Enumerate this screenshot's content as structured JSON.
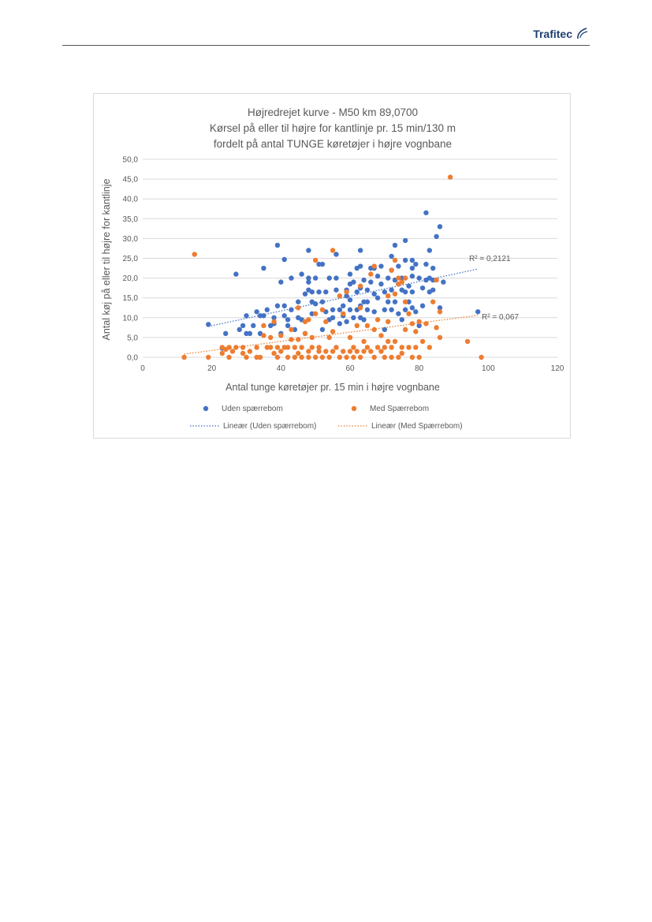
{
  "header": {
    "logo_text": "Trafitec"
  },
  "chart_data": {
    "type": "scatter",
    "title_lines": [
      "Højredrejet kurve - M50 km 89,0700",
      "Kørsel på eller til højre for kantlinje pr. 15 min/130 m",
      "fordelt på antal TUNGE køretøjer i højre vognbane"
    ],
    "xlabel": "Antal tunge køretøjer pr. 15 min i højre vognbane",
    "ylabel": "Antal køj på eller til højre for kantlinje",
    "xlim": [
      0,
      120
    ],
    "ylim": [
      0,
      50
    ],
    "x_ticks": [
      "0",
      "20",
      "40",
      "60",
      "80",
      "100",
      "120"
    ],
    "y_ticks": [
      "0,0",
      "5,0",
      "10,0",
      "15,0",
      "20,0",
      "25,0",
      "30,0",
      "35,0",
      "40,0",
      "45,0",
      "50,0"
    ],
    "grid": "horizontal",
    "legend_position": "bottom",
    "series": [
      {
        "name": "Uden spærrebom",
        "color": "#4472c4",
        "trend_label": "Lineær (Uden spærrebom)",
        "r2_label": "R² = 0,2121",
        "trend": [
          [
            19,
            7.8
          ],
          [
            97,
            22.3
          ]
        ],
        "points": [
          [
            19,
            8.3
          ],
          [
            23,
            2.3
          ],
          [
            24,
            6
          ],
          [
            27,
            21
          ],
          [
            28,
            7
          ],
          [
            29,
            8
          ],
          [
            30,
            10.5
          ],
          [
            30,
            6
          ],
          [
            31,
            6
          ],
          [
            32,
            8
          ],
          [
            33,
            11.5
          ],
          [
            34,
            6
          ],
          [
            34,
            10.5
          ],
          [
            35,
            22.5
          ],
          [
            35,
            10.5
          ],
          [
            36,
            12
          ],
          [
            37,
            8
          ],
          [
            38,
            8.5
          ],
          [
            38,
            10
          ],
          [
            39,
            28.3
          ],
          [
            39,
            13
          ],
          [
            40,
            19
          ],
          [
            40,
            6
          ],
          [
            41,
            24.7
          ],
          [
            41,
            13
          ],
          [
            41,
            10.5
          ],
          [
            42,
            9.5
          ],
          [
            42,
            8
          ],
          [
            43,
            20
          ],
          [
            43,
            12
          ],
          [
            44,
            7
          ],
          [
            45,
            10
          ],
          [
            45,
            14
          ],
          [
            46,
            21
          ],
          [
            46,
            9.5
          ],
          [
            47,
            16
          ],
          [
            47,
            6
          ],
          [
            48,
            27
          ],
          [
            48,
            19
          ],
          [
            48,
            20
          ],
          [
            48,
            17
          ],
          [
            49,
            16.5
          ],
          [
            49,
            14
          ],
          [
            49,
            11
          ],
          [
            50,
            20
          ],
          [
            50,
            13.5
          ],
          [
            51,
            23.5
          ],
          [
            51,
            16.5
          ],
          [
            52,
            23.5
          ],
          [
            52,
            14
          ],
          [
            52,
            7
          ],
          [
            53,
            11.5
          ],
          [
            53,
            16.5
          ],
          [
            54,
            20
          ],
          [
            54,
            9.5
          ],
          [
            55,
            12
          ],
          [
            55,
            10
          ],
          [
            56,
            26
          ],
          [
            56,
            20
          ],
          [
            56,
            17
          ],
          [
            57,
            12
          ],
          [
            57,
            8.5
          ],
          [
            58,
            13
          ],
          [
            58,
            10.5
          ],
          [
            59,
            17
          ],
          [
            59,
            15.5
          ],
          [
            59,
            9
          ],
          [
            60,
            21
          ],
          [
            60,
            18.5
          ],
          [
            60,
            14.5
          ],
          [
            60,
            12
          ],
          [
            61,
            19
          ],
          [
            61,
            10
          ],
          [
            62,
            22.5
          ],
          [
            62,
            16.5
          ],
          [
            62,
            12
          ],
          [
            63,
            27
          ],
          [
            63,
            23
          ],
          [
            63,
            17.5
          ],
          [
            63,
            13
          ],
          [
            63,
            10
          ],
          [
            64,
            19.5
          ],
          [
            64,
            14
          ],
          [
            64,
            9.5
          ],
          [
            65,
            17
          ],
          [
            65,
            14
          ],
          [
            65,
            12
          ],
          [
            66,
            22.5
          ],
          [
            66,
            19
          ],
          [
            67,
            22.5
          ],
          [
            67,
            16
          ],
          [
            67,
            11.5
          ],
          [
            68,
            20.5
          ],
          [
            68,
            15
          ],
          [
            69,
            23
          ],
          [
            69,
            18.5
          ],
          [
            70,
            16.5
          ],
          [
            70,
            12
          ],
          [
            70,
            7
          ],
          [
            71,
            20
          ],
          [
            71,
            14
          ],
          [
            72,
            25.5
          ],
          [
            72,
            22
          ],
          [
            72,
            17
          ],
          [
            72,
            12
          ],
          [
            73,
            28.3
          ],
          [
            73,
            19.5
          ],
          [
            73,
            14
          ],
          [
            74,
            23
          ],
          [
            74,
            18.5
          ],
          [
            74,
            11
          ],
          [
            75,
            20
          ],
          [
            75,
            17
          ],
          [
            75,
            9.5
          ],
          [
            76,
            29.5
          ],
          [
            76,
            24.5
          ],
          [
            76,
            16.5
          ],
          [
            76,
            12
          ],
          [
            77,
            18
          ],
          [
            77,
            14
          ],
          [
            78,
            24.5
          ],
          [
            78,
            22.5
          ],
          [
            78,
            20.5
          ],
          [
            78,
            16.5
          ],
          [
            78,
            12.5
          ],
          [
            79,
            23.5
          ],
          [
            79,
            11.5
          ],
          [
            80,
            20
          ],
          [
            80,
            8
          ],
          [
            81,
            17.5
          ],
          [
            81,
            13
          ],
          [
            82,
            36.5
          ],
          [
            82,
            23.5
          ],
          [
            82,
            19.5
          ],
          [
            83,
            27
          ],
          [
            83,
            20
          ],
          [
            83,
            16.5
          ],
          [
            84,
            22.5
          ],
          [
            84,
            19.5
          ],
          [
            84,
            17
          ],
          [
            85,
            30.5
          ],
          [
            86,
            33
          ],
          [
            86,
            12.5
          ],
          [
            87,
            19
          ],
          [
            97,
            11.5
          ]
        ]
      },
      {
        "name": "Med Spærrebom",
        "color": "#ed7d31",
        "trend_label": "Lineær (Med Spærrebom)",
        "r2_label": "R² = 0,067",
        "trend": [
          [
            12,
            0.8
          ],
          [
            97,
            10.6
          ]
        ],
        "points": [
          [
            12,
            0
          ],
          [
            15,
            26
          ],
          [
            19,
            0
          ],
          [
            23,
            1
          ],
          [
            23,
            2.5
          ],
          [
            24,
            2
          ],
          [
            25,
            0
          ],
          [
            25,
            2.5
          ],
          [
            26,
            1.5
          ],
          [
            27,
            2.5
          ],
          [
            29,
            2.5
          ],
          [
            29,
            1
          ],
          [
            30,
            0
          ],
          [
            31,
            1.5
          ],
          [
            33,
            0
          ],
          [
            33,
            2.5
          ],
          [
            34,
            0
          ],
          [
            35,
            5.5
          ],
          [
            35,
            8
          ],
          [
            36,
            2.5
          ],
          [
            37,
            2.5
          ],
          [
            37,
            5
          ],
          [
            38,
            1
          ],
          [
            38,
            9
          ],
          [
            39,
            0
          ],
          [
            39,
            2.5
          ],
          [
            40,
            1.5
          ],
          [
            40,
            5.5
          ],
          [
            41,
            2.5
          ],
          [
            42,
            0
          ],
          [
            42,
            2.5
          ],
          [
            43,
            4.5
          ],
          [
            43,
            7
          ],
          [
            44,
            0
          ],
          [
            44,
            2.5
          ],
          [
            45,
            1
          ],
          [
            45,
            4.5
          ],
          [
            45,
            12.5
          ],
          [
            46,
            0
          ],
          [
            46,
            2.5
          ],
          [
            47,
            6
          ],
          [
            47,
            9
          ],
          [
            48,
            0
          ],
          [
            48,
            1.5
          ],
          [
            48,
            9.5
          ],
          [
            49,
            2.5
          ],
          [
            49,
            5
          ],
          [
            50,
            0
          ],
          [
            50,
            24.5
          ],
          [
            50,
            11
          ],
          [
            51,
            1.5
          ],
          [
            51,
            2.5
          ],
          [
            52,
            0
          ],
          [
            52,
            12
          ],
          [
            53,
            1.5
          ],
          [
            53,
            9
          ],
          [
            54,
            0
          ],
          [
            54,
            5
          ],
          [
            55,
            1.5
          ],
          [
            55,
            27
          ],
          [
            55,
            6.5
          ],
          [
            56,
            2.5
          ],
          [
            57,
            0
          ],
          [
            57,
            15.5
          ],
          [
            58,
            1.5
          ],
          [
            58,
            11
          ],
          [
            59,
            0
          ],
          [
            59,
            16.5
          ],
          [
            60,
            1.5
          ],
          [
            60,
            5
          ],
          [
            61,
            0
          ],
          [
            61,
            2.5
          ],
          [
            62,
            1.5
          ],
          [
            62,
            8
          ],
          [
            63,
            0
          ],
          [
            63,
            12.5
          ],
          [
            63,
            18
          ],
          [
            64,
            1.5
          ],
          [
            64,
            4
          ],
          [
            65,
            2.5
          ],
          [
            65,
            8
          ],
          [
            66,
            1.5
          ],
          [
            66,
            21
          ],
          [
            67,
            0
          ],
          [
            67,
            7
          ],
          [
            67,
            23
          ],
          [
            68,
            2.5
          ],
          [
            68,
            9.5
          ],
          [
            69,
            1.5
          ],
          [
            69,
            5.5
          ],
          [
            70,
            0
          ],
          [
            70,
            2.5
          ],
          [
            71,
            15.5
          ],
          [
            71,
            4
          ],
          [
            71,
            9
          ],
          [
            72,
            0
          ],
          [
            72,
            2.5
          ],
          [
            72,
            22
          ],
          [
            73,
            4
          ],
          [
            73,
            16
          ],
          [
            73,
            24.5
          ],
          [
            74,
            0
          ],
          [
            74,
            18.5
          ],
          [
            74,
            20
          ],
          [
            75,
            19
          ],
          [
            75,
            2.5
          ],
          [
            75,
            1
          ],
          [
            76,
            14
          ],
          [
            76,
            7
          ],
          [
            76,
            20
          ],
          [
            77,
            2.5
          ],
          [
            77,
            11
          ],
          [
            78,
            0
          ],
          [
            78,
            8.5
          ],
          [
            79,
            6.5
          ],
          [
            79,
            2.5
          ],
          [
            80,
            0
          ],
          [
            80,
            9
          ],
          [
            81,
            4
          ],
          [
            82,
            8.5
          ],
          [
            83,
            2.5
          ],
          [
            84,
            14
          ],
          [
            85,
            7.5
          ],
          [
            85,
            19.5
          ],
          [
            86,
            5
          ],
          [
            86,
            11.5
          ],
          [
            89,
            45.5
          ],
          [
            94,
            4
          ],
          [
            98,
            0
          ]
        ]
      }
    ]
  }
}
